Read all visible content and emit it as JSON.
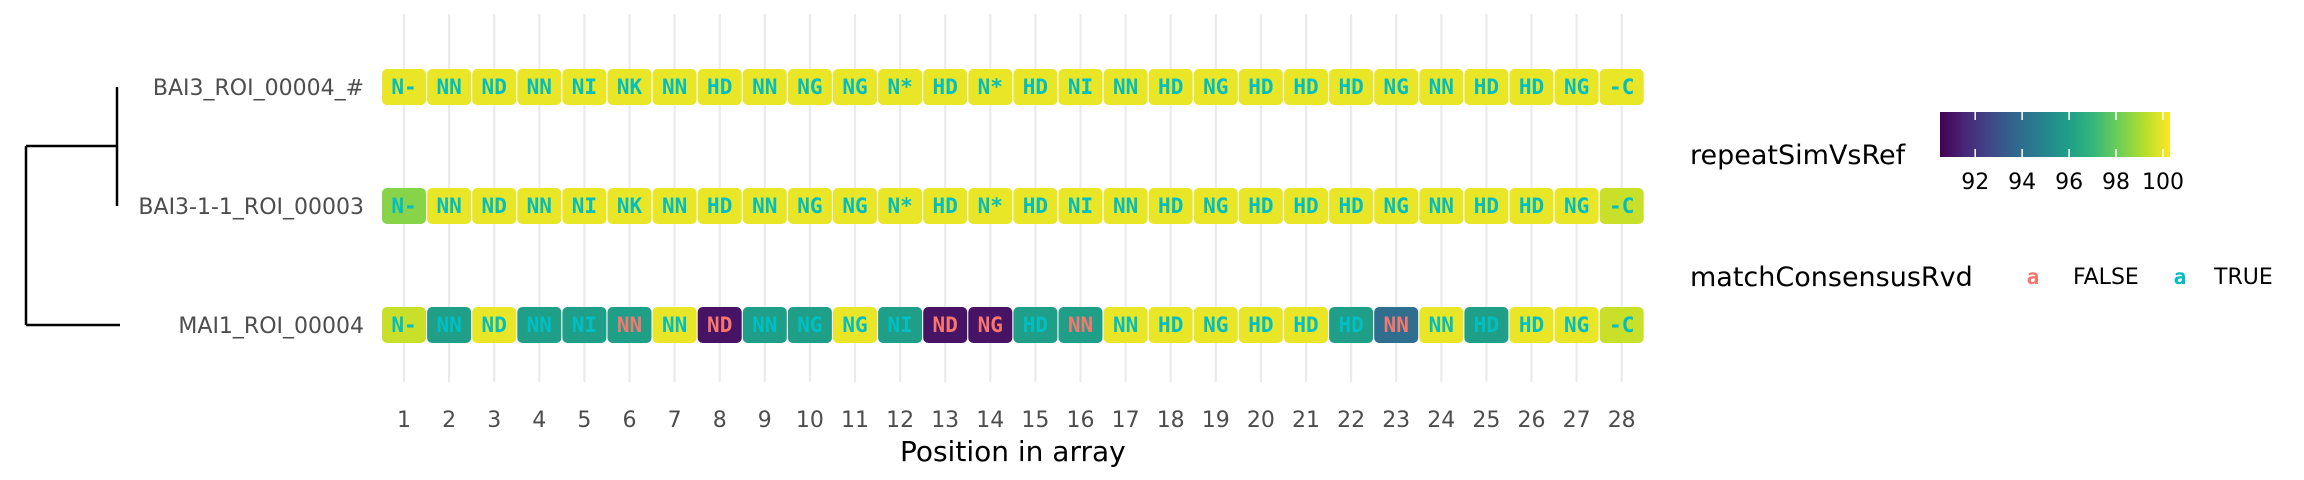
{
  "chart_data": {
    "type": "heatmap",
    "title": "",
    "xlabel": "Position in array",
    "ylabel": "",
    "x": [
      1,
      2,
      3,
      4,
      5,
      6,
      7,
      8,
      9,
      10,
      11,
      12,
      13,
      14,
      15,
      16,
      17,
      18,
      19,
      20,
      21,
      22,
      23,
      24,
      25,
      26,
      27,
      28
    ],
    "rows": [
      {
        "name": "BAI3_ROI_00004_#",
        "repeats": [
          "N-",
          "NN",
          "ND",
          "NN",
          "NI",
          "NK",
          "NN",
          "HD",
          "NN",
          "NG",
          "NG",
          "N*",
          "HD",
          "N*",
          "HD",
          "NI",
          "NN",
          "HD",
          "NG",
          "HD",
          "HD",
          "HD",
          "NG",
          "NN",
          "HD",
          "HD",
          "NG",
          "-C"
        ],
        "repeatSimVsRef": [
          100,
          100,
          100,
          100,
          100,
          100,
          100,
          100,
          100,
          100,
          100,
          100,
          100,
          100,
          100,
          100,
          100,
          100,
          100,
          100,
          100,
          100,
          100,
          100,
          100,
          100,
          100,
          100
        ],
        "matchConsensusRvd": [
          true,
          true,
          true,
          true,
          true,
          true,
          true,
          true,
          true,
          true,
          true,
          true,
          true,
          true,
          true,
          true,
          true,
          true,
          true,
          true,
          true,
          true,
          true,
          true,
          true,
          true,
          true,
          true
        ]
      },
      {
        "name": "BAI3-1-1_ROI_00003",
        "repeats": [
          "N-",
          "NN",
          "ND",
          "NN",
          "NI",
          "NK",
          "NN",
          "HD",
          "NN",
          "NG",
          "NG",
          "N*",
          "HD",
          "N*",
          "HD",
          "NI",
          "NN",
          "HD",
          "NG",
          "HD",
          "HD",
          "HD",
          "NG",
          "NN",
          "HD",
          "HD",
          "NG",
          "-C"
        ],
        "repeatSimVsRef": [
          98.5,
          100,
          100,
          100,
          100,
          100,
          100,
          100,
          100,
          100,
          100,
          100,
          100,
          100,
          100,
          100,
          100,
          100,
          100,
          100,
          100,
          100,
          100,
          100,
          100,
          100,
          100,
          99.5
        ],
        "matchConsensusRvd": [
          true,
          true,
          true,
          true,
          true,
          true,
          true,
          true,
          true,
          true,
          true,
          true,
          true,
          true,
          true,
          true,
          true,
          true,
          true,
          true,
          true,
          true,
          true,
          true,
          true,
          true,
          true,
          true
        ]
      },
      {
        "name": "MAI1_ROI_00004",
        "repeats": [
          "N-",
          "NN",
          "ND",
          "NN",
          "NI",
          "NN",
          "NN",
          "ND",
          "NN",
          "NG",
          "NG",
          "NI",
          "ND",
          "NG",
          "HD",
          "NN",
          "NN",
          "HD",
          "NG",
          "HD",
          "HD",
          "HD",
          "NN",
          "NN",
          "HD",
          "HD",
          "NG",
          "-C"
        ],
        "repeatSimVsRef": [
          99.5,
          96,
          100,
          96,
          96,
          96,
          100,
          91,
          96,
          96,
          100,
          96,
          91,
          91,
          96,
          96,
          100,
          100,
          100,
          100,
          100,
          96,
          94,
          100,
          96,
          100,
          100,
          99.5
        ],
        "matchConsensusRvd": [
          true,
          true,
          true,
          true,
          true,
          false,
          true,
          false,
          true,
          true,
          true,
          true,
          false,
          false,
          true,
          false,
          true,
          true,
          true,
          true,
          true,
          true,
          false,
          true,
          true,
          true,
          true,
          true
        ]
      }
    ],
    "dendrogram": "MAI1_ROI_00004 joins cluster of BAI3_ROI_00004_# and BAI3-1-1_ROI_00003",
    "legends": {
      "fill": {
        "title": "repeatSimVsRef",
        "ticks": [
          92,
          94,
          96,
          98,
          100
        ],
        "range": [
          90.5,
          100.3
        ],
        "palette": "viridis"
      },
      "text_color": {
        "title": "matchConsensusRvd",
        "glyph": "a",
        "entries": [
          {
            "label": "FALSE",
            "color": "#f8766d"
          },
          {
            "label": "TRUE",
            "color": "#00bfc4"
          }
        ]
      }
    },
    "grid": true,
    "legend_position": "right"
  }
}
